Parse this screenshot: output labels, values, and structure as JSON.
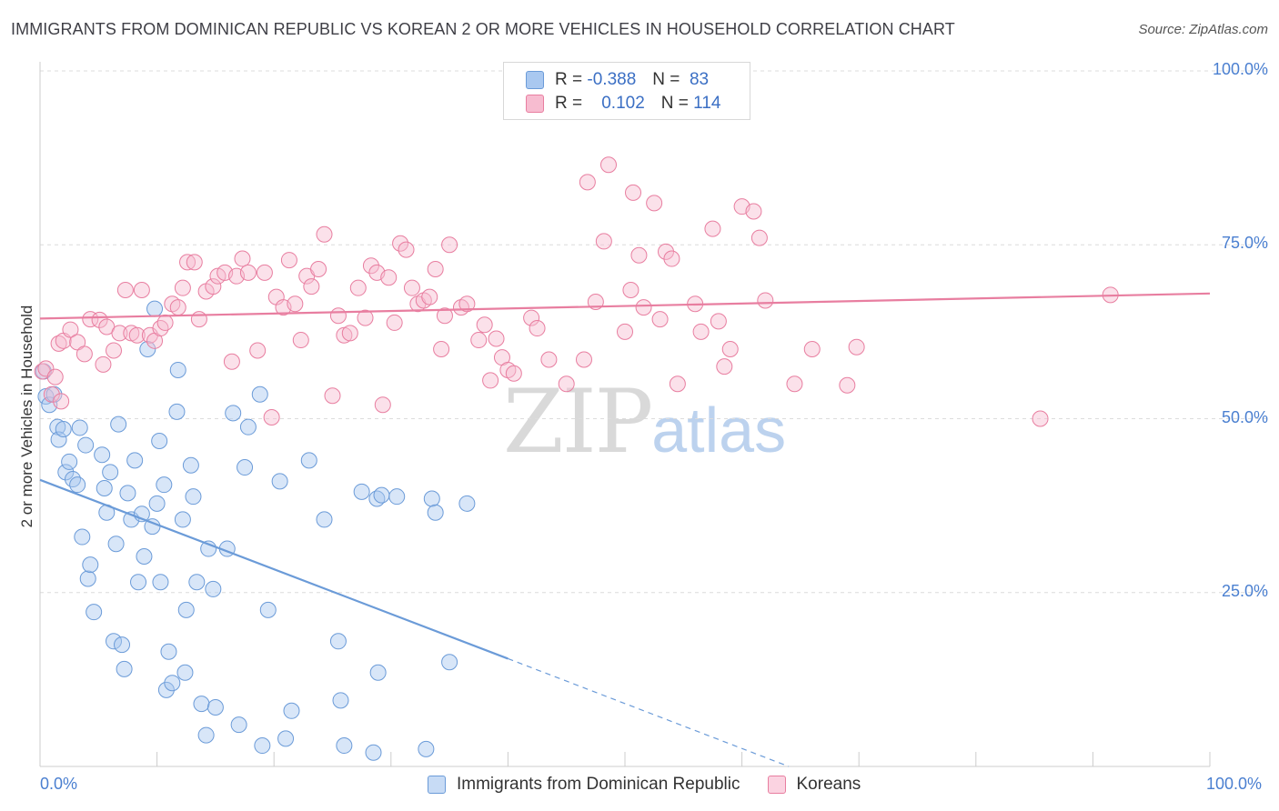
{
  "header": {
    "title": "IMMIGRANTS FROM DOMINICAN REPUBLIC VS KOREAN 2 OR MORE VEHICLES IN HOUSEHOLD CORRELATION CHART",
    "source": "Source: ZipAtlas.com"
  },
  "watermark": {
    "zip": "ZIP",
    "atlas": "atlas"
  },
  "stats": [
    {
      "r_label": "R =",
      "r_value": "-0.388",
      "n_label": "N =",
      "n_value": "83",
      "color": "#a9c8f0",
      "border": "#6b9bd8"
    },
    {
      "r_label": "R =",
      "r_value": "0.102",
      "n_label": "N =",
      "n_value": "114",
      "color": "#f7bcd0",
      "border": "#e87ea0"
    }
  ],
  "legend": [
    {
      "label": "Immigrants from Dominican Republic",
      "color": "#c7dbf5",
      "border": "#6b9bd8"
    },
    {
      "label": "Koreans",
      "color": "#fbd3e1",
      "border": "#e87ea0"
    }
  ],
  "chart_data": {
    "type": "scatter",
    "title": "IMMIGRANTS FROM DOMINICAN REPUBLIC VS KOREAN 2 OR MORE VEHICLES IN HOUSEHOLD CORRELATION CHART",
    "xlabel": "",
    "ylabel": "2 or more Vehicles in Household",
    "xlim": [
      0,
      100
    ],
    "ylim": [
      0,
      100
    ],
    "x_tick_labels": [
      "0.0%",
      "100.0%"
    ],
    "y_ticks": [
      25,
      50,
      75,
      100
    ],
    "y_tick_labels": [
      "25.0%",
      "50.0%",
      "75.0%",
      "100.0%"
    ],
    "grid": true,
    "legend_position": "bottom",
    "series": [
      {
        "name": "Immigrants from Dominican Republic",
        "color": "#6b9bd8",
        "fill": "rgba(169,200,240,0.45)",
        "trend": {
          "x0": 0,
          "y0": 41.2,
          "x1": 40.0,
          "y1": 15.5,
          "dash_to": [
            64,
            0
          ]
        },
        "points": [
          [
            0.3,
            56.8
          ],
          [
            0.5,
            53.2
          ],
          [
            0.8,
            52.0
          ],
          [
            1.2,
            53.5
          ],
          [
            1.5,
            48.8
          ],
          [
            1.6,
            47.0
          ],
          [
            2.0,
            48.5
          ],
          [
            2.2,
            42.3
          ],
          [
            2.5,
            43.8
          ],
          [
            2.8,
            41.3
          ],
          [
            3.2,
            40.5
          ],
          [
            3.4,
            48.7
          ],
          [
            3.6,
            33.0
          ],
          [
            3.9,
            46.2
          ],
          [
            4.1,
            27.0
          ],
          [
            4.3,
            29.0
          ],
          [
            4.6,
            22.2
          ],
          [
            5.3,
            44.8
          ],
          [
            5.5,
            40.0
          ],
          [
            5.7,
            36.5
          ],
          [
            6.0,
            42.3
          ],
          [
            6.3,
            18.0
          ],
          [
            6.5,
            32.0
          ],
          [
            6.7,
            49.2
          ],
          [
            7.0,
            17.5
          ],
          [
            7.2,
            14.0
          ],
          [
            7.5,
            39.3
          ],
          [
            7.8,
            35.5
          ],
          [
            8.1,
            44.0
          ],
          [
            8.4,
            26.5
          ],
          [
            8.7,
            36.3
          ],
          [
            8.9,
            30.2
          ],
          [
            9.2,
            60.0
          ],
          [
            9.6,
            34.5
          ],
          [
            9.8,
            65.8
          ],
          [
            10.0,
            37.8
          ],
          [
            10.2,
            46.8
          ],
          [
            10.3,
            26.5
          ],
          [
            10.6,
            40.5
          ],
          [
            10.8,
            11.0
          ],
          [
            11.0,
            16.5
          ],
          [
            11.3,
            12.0
          ],
          [
            11.7,
            51.0
          ],
          [
            11.8,
            57.0
          ],
          [
            12.2,
            35.5
          ],
          [
            12.4,
            13.5
          ],
          [
            12.5,
            22.5
          ],
          [
            12.9,
            43.3
          ],
          [
            13.1,
            38.8
          ],
          [
            13.4,
            26.5
          ],
          [
            13.8,
            9.0
          ],
          [
            14.2,
            4.5
          ],
          [
            14.4,
            31.3
          ],
          [
            14.8,
            25.5
          ],
          [
            15.0,
            8.5
          ],
          [
            16.0,
            31.3
          ],
          [
            16.5,
            50.8
          ],
          [
            17.0,
            6.0
          ],
          [
            17.5,
            43.0
          ],
          [
            17.8,
            48.8
          ],
          [
            18.8,
            53.5
          ],
          [
            19.0,
            3.0
          ],
          [
            19.5,
            22.5
          ],
          [
            20.5,
            41.0
          ],
          [
            21.0,
            4.0
          ],
          [
            21.5,
            8.0
          ],
          [
            23.0,
            44.0
          ],
          [
            24.3,
            35.5
          ],
          [
            25.5,
            18.0
          ],
          [
            25.7,
            9.5
          ],
          [
            26.0,
            3.0
          ],
          [
            27.5,
            39.5
          ],
          [
            28.5,
            2.0
          ],
          [
            28.8,
            38.5
          ],
          [
            28.9,
            13.5
          ],
          [
            29.2,
            39.0
          ],
          [
            30.5,
            38.8
          ],
          [
            33.0,
            2.5
          ],
          [
            33.5,
            38.5
          ],
          [
            33.8,
            36.5
          ],
          [
            35.0,
            15.0
          ],
          [
            36.5,
            37.8
          ]
        ]
      },
      {
        "name": "Koreans",
        "color": "#e87ea0",
        "fill": "rgba(247,188,208,0.45)",
        "trend": {
          "x0": 0,
          "y0": 64.4,
          "x1": 100,
          "y1": 68.0
        },
        "points": [
          [
            0.2,
            56.8
          ],
          [
            0.5,
            57.2
          ],
          [
            1.0,
            53.5
          ],
          [
            1.3,
            56.0
          ],
          [
            1.6,
            60.8
          ],
          [
            1.8,
            52.5
          ],
          [
            2.0,
            61.2
          ],
          [
            2.6,
            62.8
          ],
          [
            3.2,
            61.0
          ],
          [
            3.8,
            59.3
          ],
          [
            4.3,
            64.3
          ],
          [
            5.1,
            64.2
          ],
          [
            5.4,
            57.8
          ],
          [
            5.7,
            63.2
          ],
          [
            6.3,
            59.8
          ],
          [
            6.8,
            62.3
          ],
          [
            7.3,
            68.5
          ],
          [
            7.8,
            62.3
          ],
          [
            8.3,
            62.0
          ],
          [
            8.7,
            68.5
          ],
          [
            9.4,
            62.0
          ],
          [
            9.8,
            61.2
          ],
          [
            10.3,
            63.0
          ],
          [
            10.7,
            63.8
          ],
          [
            11.3,
            66.5
          ],
          [
            11.8,
            66.0
          ],
          [
            12.2,
            68.8
          ],
          [
            12.6,
            72.5
          ],
          [
            13.2,
            72.5
          ],
          [
            13.6,
            64.3
          ],
          [
            14.2,
            68.3
          ],
          [
            14.8,
            69.0
          ],
          [
            15.2,
            70.5
          ],
          [
            15.8,
            71.0
          ],
          [
            16.4,
            58.2
          ],
          [
            16.8,
            70.5
          ],
          [
            17.3,
            73.0
          ],
          [
            17.8,
            71.0
          ],
          [
            18.6,
            59.8
          ],
          [
            19.2,
            71.0
          ],
          [
            19.8,
            50.2
          ],
          [
            20.2,
            67.5
          ],
          [
            20.8,
            66.0
          ],
          [
            21.3,
            72.8
          ],
          [
            21.8,
            66.5
          ],
          [
            22.3,
            61.3
          ],
          [
            22.8,
            70.5
          ],
          [
            23.2,
            69.0
          ],
          [
            23.8,
            71.5
          ],
          [
            24.3,
            76.5
          ],
          [
            25.0,
            53.3
          ],
          [
            25.5,
            64.8
          ],
          [
            26.0,
            62.0
          ],
          [
            26.5,
            62.3
          ],
          [
            27.2,
            68.8
          ],
          [
            27.8,
            64.5
          ],
          [
            28.3,
            72.0
          ],
          [
            28.8,
            71.0
          ],
          [
            29.3,
            52.0
          ],
          [
            29.8,
            70.3
          ],
          [
            30.3,
            63.8
          ],
          [
            30.8,
            75.2
          ],
          [
            31.3,
            74.3
          ],
          [
            31.8,
            68.8
          ],
          [
            32.3,
            66.5
          ],
          [
            32.8,
            67.0
          ],
          [
            33.3,
            67.5
          ],
          [
            33.8,
            71.5
          ],
          [
            34.3,
            60.0
          ],
          [
            34.6,
            64.8
          ],
          [
            35.0,
            75.0
          ],
          [
            36.0,
            66.0
          ],
          [
            36.5,
            66.5
          ],
          [
            37.5,
            61.3
          ],
          [
            38.0,
            63.5
          ],
          [
            38.5,
            55.5
          ],
          [
            39.0,
            61.5
          ],
          [
            39.5,
            58.8
          ],
          [
            40.0,
            57.0
          ],
          [
            40.5,
            56.5
          ],
          [
            42.0,
            64.5
          ],
          [
            42.5,
            63.0
          ],
          [
            43.5,
            58.5
          ],
          [
            45.0,
            55.0
          ],
          [
            46.5,
            58.5
          ],
          [
            46.8,
            84.0
          ],
          [
            47.5,
            66.8
          ],
          [
            48.2,
            75.5
          ],
          [
            48.6,
            86.5
          ],
          [
            50.0,
            62.5
          ],
          [
            50.5,
            68.5
          ],
          [
            50.7,
            82.5
          ],
          [
            51.2,
            73.5
          ],
          [
            51.6,
            66.0
          ],
          [
            52.5,
            81.0
          ],
          [
            53.0,
            64.3
          ],
          [
            53.5,
            74.0
          ],
          [
            54.0,
            73.0
          ],
          [
            54.5,
            55.0
          ],
          [
            56.0,
            66.5
          ],
          [
            56.5,
            62.5
          ],
          [
            57.5,
            77.3
          ],
          [
            58.0,
            64.0
          ],
          [
            58.5,
            57.5
          ],
          [
            59.0,
            60.0
          ],
          [
            60.0,
            80.5
          ],
          [
            61.0,
            79.8
          ],
          [
            61.5,
            76.0
          ],
          [
            62.0,
            67.0
          ],
          [
            64.5,
            55.0
          ],
          [
            66.0,
            60.0
          ],
          [
            69.0,
            54.8
          ],
          [
            69.8,
            60.3
          ],
          [
            85.5,
            50.0
          ],
          [
            91.5,
            67.8
          ]
        ]
      }
    ]
  }
}
